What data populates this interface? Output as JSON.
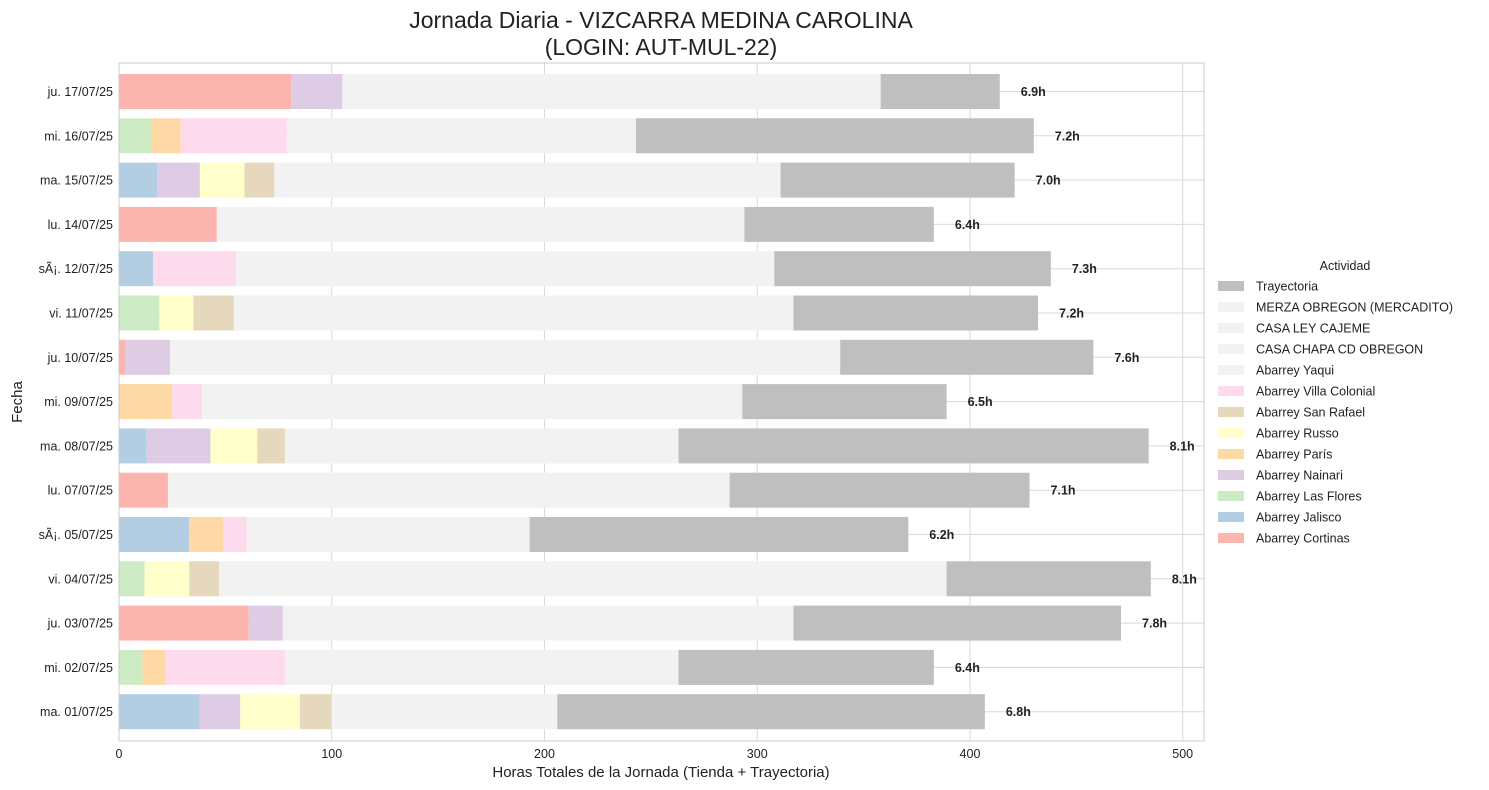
{
  "chart_data": {
    "type": "bar",
    "orientation": "horizontal",
    "stacked": true,
    "title": "Jornada Diaria - VIZCARRA MEDINA CAROLINA",
    "subtitle": "(LOGIN: AUT-MUL-22)",
    "xlabel": "Horas Totales de la Jornada (Tienda + Trayectoria)",
    "ylabel": "Fecha",
    "xlim": [
      0,
      510
    ],
    "xticks": [
      0,
      100,
      200,
      300,
      400,
      500
    ],
    "grid": true,
    "legend_title": "Actividad",
    "legend_position": "right",
    "legend": [
      {
        "name": "Trayectoria",
        "color": "#bfbfbf"
      },
      {
        "name": "MERZA OBREGON (MERCADITO)",
        "color": "#f2f2f2"
      },
      {
        "name": "CASA LEY CAJEME",
        "color": "#f2f2f2"
      },
      {
        "name": "CASA CHAPA CD OBREGON",
        "color": "#f2f2f2"
      },
      {
        "name": "Abarrey Yaqui",
        "color": "#f2f2f2"
      },
      {
        "name": "Abarrey Villa Colonial",
        "color": "#fddaec"
      },
      {
        "name": "Abarrey San Rafael",
        "color": "#e5d8bd"
      },
      {
        "name": "Abarrey Russo",
        "color": "#ffffcc"
      },
      {
        "name": "Abarrey París",
        "color": "#fed9a6"
      },
      {
        "name": "Abarrey Nainari",
        "color": "#decbe4"
      },
      {
        "name": "Abarrey Las Flores",
        "color": "#ccebc5"
      },
      {
        "name": "Abarrey Jalisco",
        "color": "#b3cde3"
      },
      {
        "name": "Abarrey Cortinas",
        "color": "#fbb4ae"
      }
    ],
    "rows": [
      {
        "date": "ju. 17/07/25",
        "total_label": "6.9h",
        "segments": [
          {
            "activity": "Abarrey Cortinas",
            "value": 81
          },
          {
            "activity": "Abarrey Nainari",
            "value": 24
          },
          {
            "activity": "Abarrey Yaqui",
            "value": 253
          },
          {
            "activity": "Trayectoria",
            "value": 56
          }
        ]
      },
      {
        "date": "mi. 16/07/25",
        "total_label": "7.2h",
        "segments": [
          {
            "activity": "Abarrey Las Flores",
            "value": 15
          },
          {
            "activity": "Abarrey París",
            "value": 14
          },
          {
            "activity": "Abarrey Villa Colonial",
            "value": 50
          },
          {
            "activity": "Abarrey Yaqui",
            "value": 164
          },
          {
            "activity": "Trayectoria",
            "value": 187
          }
        ]
      },
      {
        "date": "ma. 15/07/25",
        "total_label": "7.0h",
        "segments": [
          {
            "activity": "Abarrey Jalisco",
            "value": 18
          },
          {
            "activity": "Abarrey Nainari",
            "value": 20
          },
          {
            "activity": "Abarrey Russo",
            "value": 21
          },
          {
            "activity": "Abarrey San Rafael",
            "value": 14
          },
          {
            "activity": "Abarrey Yaqui",
            "value": 238
          },
          {
            "activity": "Trayectoria",
            "value": 110
          }
        ]
      },
      {
        "date": "lu. 14/07/25",
        "total_label": "6.4h",
        "segments": [
          {
            "activity": "Abarrey Cortinas",
            "value": 46
          },
          {
            "activity": "Abarrey Yaqui",
            "value": 248
          },
          {
            "activity": "Trayectoria",
            "value": 89
          }
        ]
      },
      {
        "date": "sÃ¡. 12/07/25",
        "total_label": "7.3h",
        "segments": [
          {
            "activity": "Abarrey Jalisco",
            "value": 16
          },
          {
            "activity": "Abarrey Villa Colonial",
            "value": 39
          },
          {
            "activity": "Abarrey Yaqui",
            "value": 253
          },
          {
            "activity": "Trayectoria",
            "value": 130
          }
        ]
      },
      {
        "date": "vi. 11/07/25",
        "total_label": "7.2h",
        "segments": [
          {
            "activity": "Abarrey Las Flores",
            "value": 19
          },
          {
            "activity": "Abarrey Russo",
            "value": 16
          },
          {
            "activity": "Abarrey San Rafael",
            "value": 19
          },
          {
            "activity": "Abarrey Yaqui",
            "value": 263
          },
          {
            "activity": "Trayectoria",
            "value": 115
          }
        ]
      },
      {
        "date": "ju. 10/07/25",
        "total_label": "7.6h",
        "segments": [
          {
            "activity": "Abarrey Cortinas",
            "value": 3
          },
          {
            "activity": "Abarrey Nainari",
            "value": 21
          },
          {
            "activity": "Abarrey Yaqui",
            "value": 315
          },
          {
            "activity": "Trayectoria",
            "value": 119
          }
        ]
      },
      {
        "date": "mi. 09/07/25",
        "total_label": "6.5h",
        "segments": [
          {
            "activity": "Abarrey París",
            "value": 25
          },
          {
            "activity": "Abarrey Villa Colonial",
            "value": 14
          },
          {
            "activity": "Abarrey Yaqui",
            "value": 254
          },
          {
            "activity": "Trayectoria",
            "value": 96
          }
        ]
      },
      {
        "date": "ma. 08/07/25",
        "total_label": "8.1h",
        "segments": [
          {
            "activity": "Abarrey Jalisco",
            "value": 13
          },
          {
            "activity": "Abarrey Nainari",
            "value": 30
          },
          {
            "activity": "Abarrey Russo",
            "value": 22
          },
          {
            "activity": "Abarrey San Rafael",
            "value": 13
          },
          {
            "activity": "Abarrey Yaqui",
            "value": 185
          },
          {
            "activity": "Trayectoria",
            "value": 221
          }
        ]
      },
      {
        "date": "lu. 07/07/25",
        "total_label": "7.1h",
        "segments": [
          {
            "activity": "Abarrey Cortinas",
            "value": 23
          },
          {
            "activity": "Abarrey Yaqui",
            "value": 264
          },
          {
            "activity": "Trayectoria",
            "value": 141
          }
        ]
      },
      {
        "date": "sÃ¡. 05/07/25",
        "total_label": "6.2h",
        "segments": [
          {
            "activity": "Abarrey Jalisco",
            "value": 33
          },
          {
            "activity": "Abarrey París",
            "value": 16
          },
          {
            "activity": "Abarrey Villa Colonial",
            "value": 11
          },
          {
            "activity": "Abarrey Yaqui",
            "value": 133
          },
          {
            "activity": "Trayectoria",
            "value": 178
          }
        ]
      },
      {
        "date": "vi. 04/07/25",
        "total_label": "8.1h",
        "segments": [
          {
            "activity": "Abarrey Las Flores",
            "value": 12
          },
          {
            "activity": "Abarrey Russo",
            "value": 21
          },
          {
            "activity": "Abarrey San Rafael",
            "value": 14
          },
          {
            "activity": "Abarrey Yaqui",
            "value": 342
          },
          {
            "activity": "Trayectoria",
            "value": 96
          }
        ]
      },
      {
        "date": "ju. 03/07/25",
        "total_label": "7.8h",
        "segments": [
          {
            "activity": "Abarrey Cortinas",
            "value": 61
          },
          {
            "activity": "Abarrey Nainari",
            "value": 16
          },
          {
            "activity": "Abarrey Yaqui",
            "value": 240
          },
          {
            "activity": "Trayectoria",
            "value": 154
          }
        ]
      },
      {
        "date": "mi. 02/07/25",
        "total_label": "6.4h",
        "segments": [
          {
            "activity": "Abarrey Las Flores",
            "value": 11
          },
          {
            "activity": "Abarrey París",
            "value": 11
          },
          {
            "activity": "Abarrey Villa Colonial",
            "value": 56
          },
          {
            "activity": "Abarrey Yaqui",
            "value": 185
          },
          {
            "activity": "Trayectoria",
            "value": 120
          }
        ]
      },
      {
        "date": "ma. 01/07/25",
        "total_label": "6.8h",
        "segments": [
          {
            "activity": "Abarrey Jalisco",
            "value": 38
          },
          {
            "activity": "Abarrey Nainari",
            "value": 19
          },
          {
            "activity": "Abarrey Russo",
            "value": 28
          },
          {
            "activity": "Abarrey San Rafael",
            "value": 15
          },
          {
            "activity": "Abarrey Yaqui",
            "value": 106
          },
          {
            "activity": "Trayectoria",
            "value": 201
          }
        ]
      }
    ]
  }
}
